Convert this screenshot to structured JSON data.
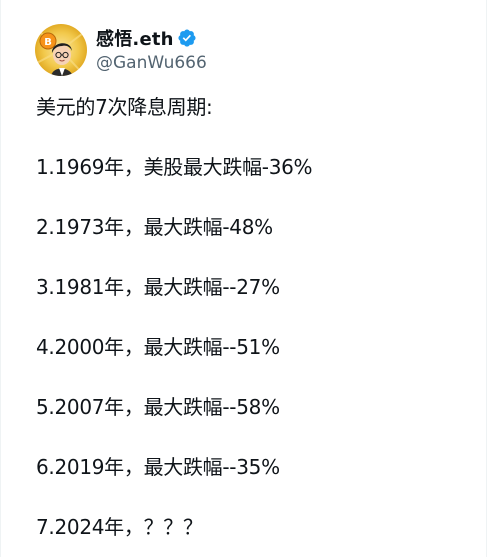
{
  "author": {
    "display_name": "感悟.eth",
    "handle": "@GanWu666",
    "verified_icon": "verified-badge-icon",
    "verified_color": "#1d9bf0"
  },
  "tweet": {
    "lines": [
      "美元的7次降息周期:",
      "1.1969年，美股最大跌幅-36%",
      "2.1973年，最大跌幅-48%",
      "3.1981年，最大跌幅--27%",
      "4.2000年，最大跌幅--51%",
      "5.2007年，最大跌幅--58%",
      "6.2019年，最大跌幅--35%",
      "7.2024年，？？？"
    ]
  },
  "colors": {
    "text": "#0f1419",
    "secondary_text": "#536471",
    "background": "#ffffff",
    "avatar_background": "#f2b01e"
  }
}
